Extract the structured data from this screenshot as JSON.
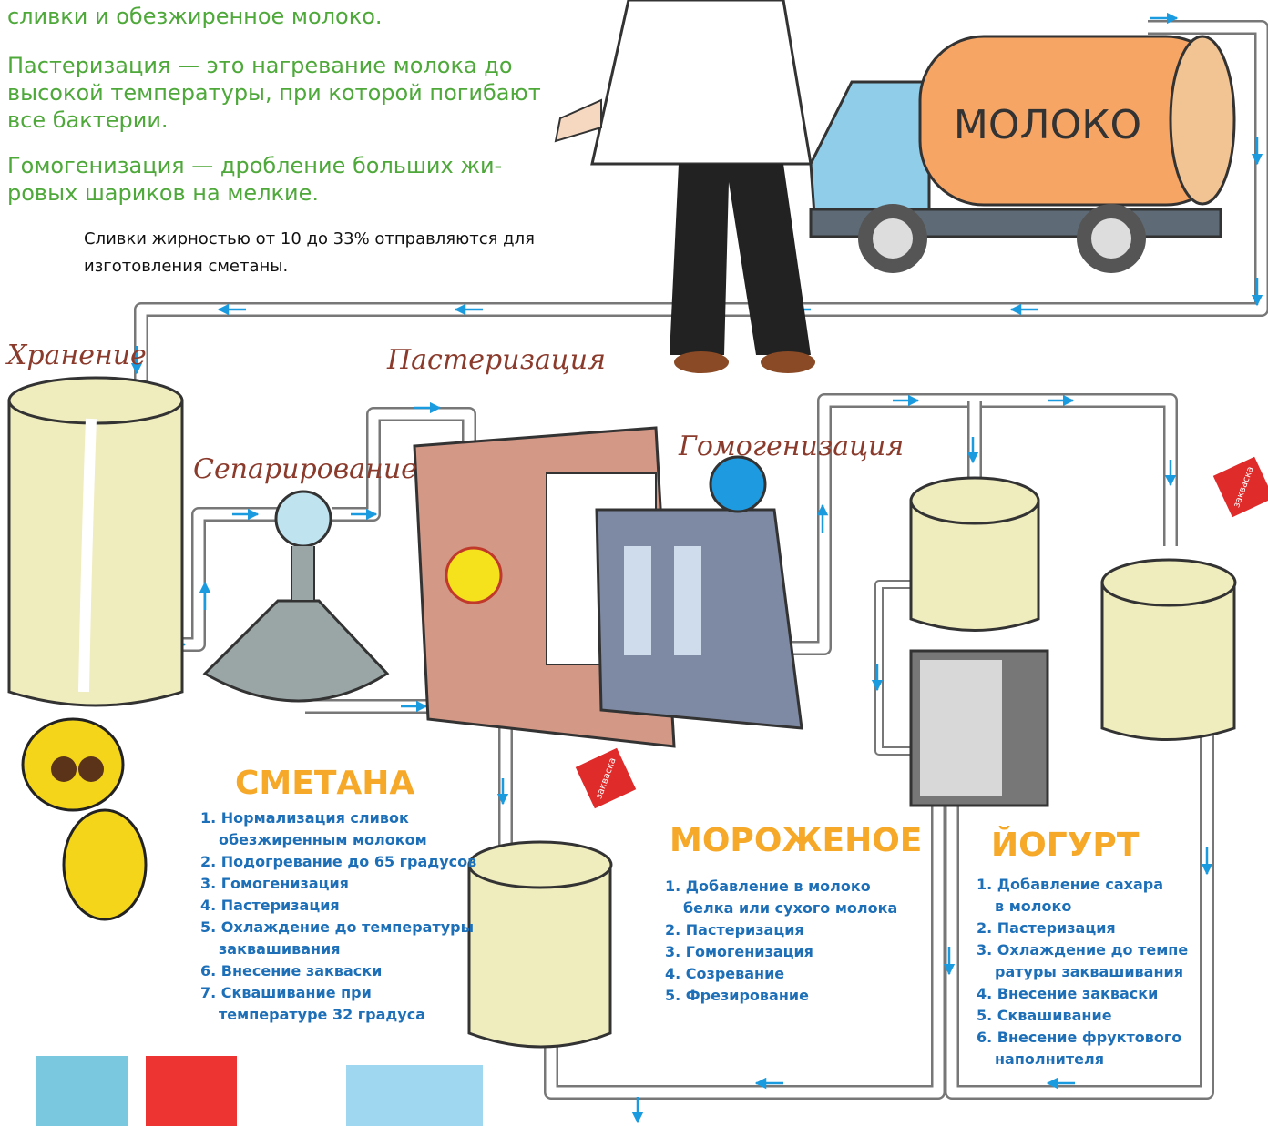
{
  "notes": {
    "intro": [
      "сливки и обезжиренное молоко."
    ],
    "pasteurization": [
      "Пастеризация — это нагревание молока до",
      "высокой температуры, при которой погибают",
      "все бактерии."
    ],
    "homogenization": [
      "Гомогенизация — дробление больших жи-",
      "ровых шариков на мелкие."
    ],
    "cream": [
      "Сливки жирностью от 10 до 33% отправляются для",
      "изготовления сметаны."
    ]
  },
  "truck_label": "МОЛОКО",
  "stages": {
    "storage": "Хранение",
    "separation": "Сепарирование",
    "pasteurization": "Пастеризация",
    "homogenization": "Гомогенизация"
  },
  "starter_label": "закваска",
  "products": [
    {
      "title": "СМЕТАНА",
      "steps": [
        [
          "1. Нормализация сливок",
          "обезжиренным молоком"
        ],
        [
          "2. Подогревание до 65 градусов"
        ],
        [
          "3. Гомогенизация"
        ],
        [
          "4. Пастеризация"
        ],
        [
          "5. Охлаждение до температуры",
          "заквашивания"
        ],
        [
          "6. Внесение закваски"
        ],
        [
          "7. Сквашивание при",
          "температуре 32 градуса"
        ]
      ]
    },
    {
      "title": "МОРОЖЕНОЕ",
      "steps": [
        [
          "1. Добавление в молоко",
          "белка или сухого молока"
        ],
        [
          "2. Пастеризация"
        ],
        [
          "3. Гомогенизация"
        ],
        [
          "4. Созревание"
        ],
        [
          "5. Фрезирование"
        ]
      ]
    },
    {
      "title": "ЙОГУРТ",
      "steps": [
        [
          "1. Добавление сахара",
          "в молоко"
        ],
        [
          "2. Пастеризация"
        ],
        [
          "3. Охлаждение до темпе",
          "ратуры заквашивания"
        ],
        [
          "4. Внесение закваски"
        ],
        [
          "5. Сквашивание"
        ],
        [
          "6. Внесение фруктового",
          "наполнителя"
        ]
      ]
    }
  ]
}
